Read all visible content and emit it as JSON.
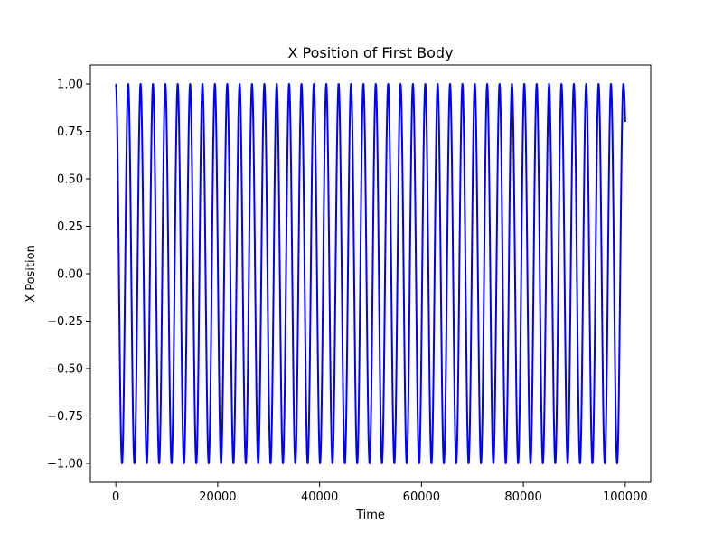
{
  "chart_data": {
    "type": "line",
    "title": "X Position of First Body",
    "xlabel": "Time",
    "ylabel": "X Position",
    "xlim": [
      -5000,
      105000
    ],
    "ylim": [
      -1.1,
      1.1
    ],
    "xticks": [
      0,
      20000,
      40000,
      60000,
      80000,
      100000
    ],
    "xtick_labels": [
      "0",
      "20000",
      "40000",
      "60000",
      "80000",
      "100000"
    ],
    "yticks": [
      1.0,
      0.75,
      0.5,
      0.25,
      0.0,
      -0.25,
      -0.5,
      -0.75,
      -1.0
    ],
    "ytick_labels": [
      "1.00",
      "0.75",
      "0.50",
      "0.25",
      "0.00",
      "−0.25",
      "−0.50",
      "−0.75",
      "−1.00"
    ],
    "grid": false,
    "series": [
      {
        "color": "#0000ff",
        "function": "cos",
        "amplitude": 1.0,
        "period": 2430,
        "x_start": 0,
        "x_end": 100000,
        "y_start": 1.0,
        "y_end": 0.8
      }
    ]
  }
}
